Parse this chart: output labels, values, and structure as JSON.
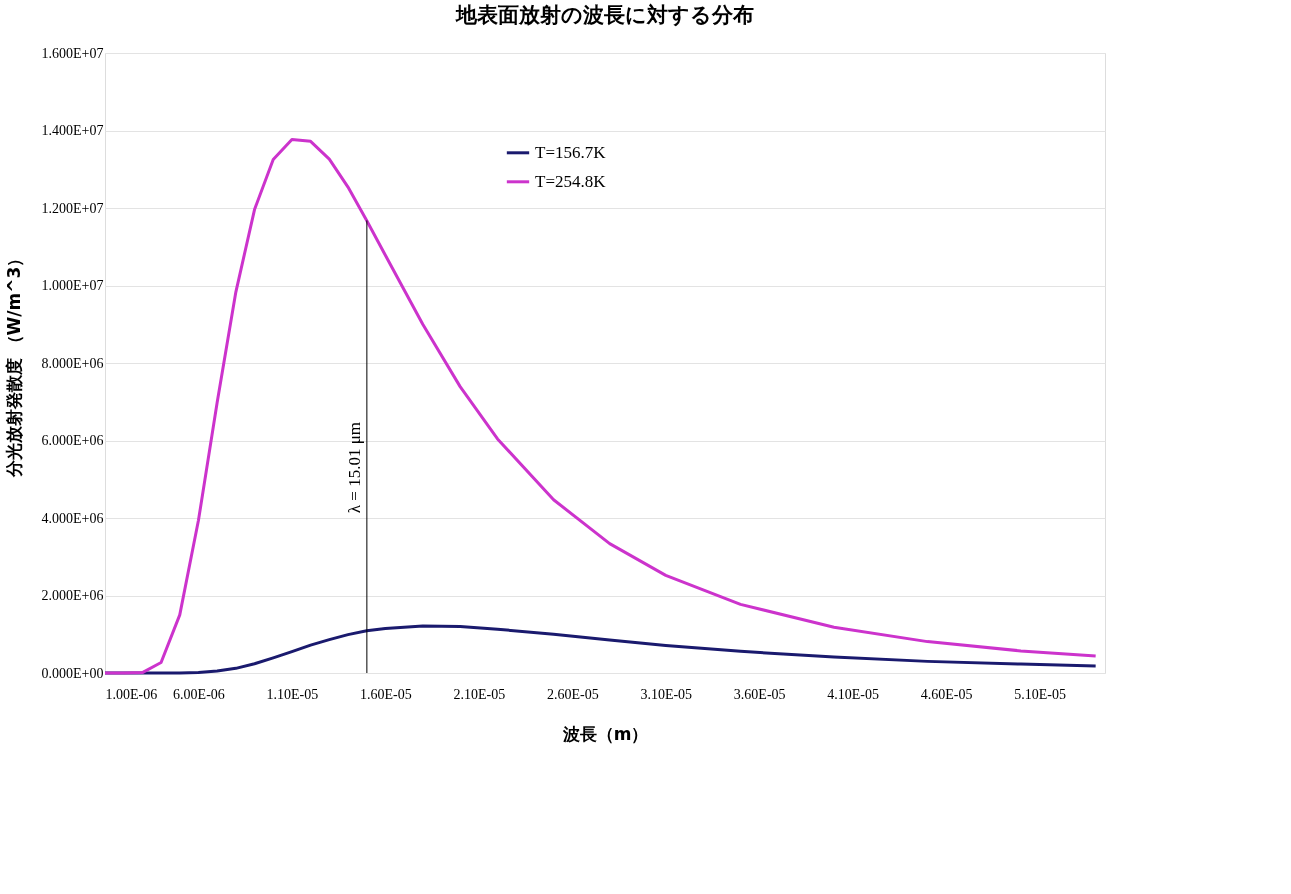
{
  "chart_data": {
    "type": "line",
    "title": "地表面放射の波長に対する分布",
    "xlabel": "波長（m）",
    "ylabel": "分光放射発散度 （W/m^3）",
    "x": [
      1e-06,
      2e-06,
      3e-06,
      4e-06,
      5e-06,
      6e-06,
      7e-06,
      8e-06,
      9e-06,
      1e-05,
      1.1e-05,
      1.2e-05,
      1.3e-05,
      1.4e-05,
      1.5e-05,
      1.6e-05,
      1.8e-05,
      2e-05,
      2.2e-05,
      2.5e-05,
      2.8e-05,
      3.1e-05,
      3.5e-05,
      4e-05,
      4.5e-05,
      5e-05,
      5.4e-05
    ],
    "series": [
      {
        "name": "T=156.7K",
        "color": "#1a1a6e",
        "values": [
          0,
          0,
          0,
          0,
          0,
          10000,
          50000,
          120000,
          240000,
          390000,
          550000,
          720000,
          860000,
          990000,
          1090000,
          1150000,
          1210000,
          1200000,
          1130000,
          1000000,
          850000,
          710000,
          560000,
          410000,
          300000,
          230000,
          180000
        ]
      },
      {
        "name": "T=254.8K",
        "color": "#cc33cc",
        "values": [
          0,
          0,
          10000,
          270000,
          1500000,
          3940000,
          6980000,
          9830000,
          11960000,
          13250000,
          13770000,
          13720000,
          13260000,
          12540000,
          11680000,
          10780000,
          9000000,
          7390000,
          6040000,
          4470000,
          3340000,
          2520000,
          1770000,
          1180000,
          810000,
          570000,
          440000
        ]
      },
      {
        "color": "#000000",
        "x": [
          1.501e-05,
          1.501e-05
        ],
        "values": [
          0,
          11680000
        ]
      }
    ],
    "xlim": [
      1e-06,
      5.45e-05
    ],
    "xticks": [
      {
        "value": 1e-06,
        "label": "1.00E-06"
      },
      {
        "value": 6e-06,
        "label": "6.00E-06"
      },
      {
        "value": 1.1e-05,
        "label": "1.10E-05"
      },
      {
        "value": 1.6e-05,
        "label": "1.60E-05"
      },
      {
        "value": 2.1e-05,
        "label": "2.10E-05"
      },
      {
        "value": 2.6e-05,
        "label": "2.60E-05"
      },
      {
        "value": 3.1e-05,
        "label": "3.10E-05"
      },
      {
        "value": 3.6e-05,
        "label": "3.60E-05"
      },
      {
        "value": 4.1e-05,
        "label": "4.10E-05"
      },
      {
        "value": 4.6e-05,
        "label": "4.60E-05"
      },
      {
        "value": 5.1e-05,
        "label": "5.10E-05"
      }
    ],
    "ylim": [
      0,
      16000000
    ],
    "yticks": [
      {
        "value": 0,
        "label": "0.000E+00"
      },
      {
        "value": 2000000,
        "label": "2.000E+06"
      },
      {
        "value": 4000000,
        "label": "4.000E+06"
      },
      {
        "value": 6000000,
        "label": "6.000E+06"
      },
      {
        "value": 8000000,
        "label": "8.000E+06"
      },
      {
        "value": 10000000,
        "label": "1.000E+07"
      },
      {
        "value": 12000000,
        "label": "1.200E+07"
      },
      {
        "value": 14000000,
        "label": "1.400E+07"
      },
      {
        "value": 16000000,
        "label": "1.600E+07"
      }
    ],
    "annotations": [
      {
        "text": "λ = 15.01 μm",
        "x": 1.501e-05,
        "y": 5300000
      }
    ],
    "grid": "y",
    "legend": "top",
    "marker": "none",
    "line_style": "solid"
  }
}
